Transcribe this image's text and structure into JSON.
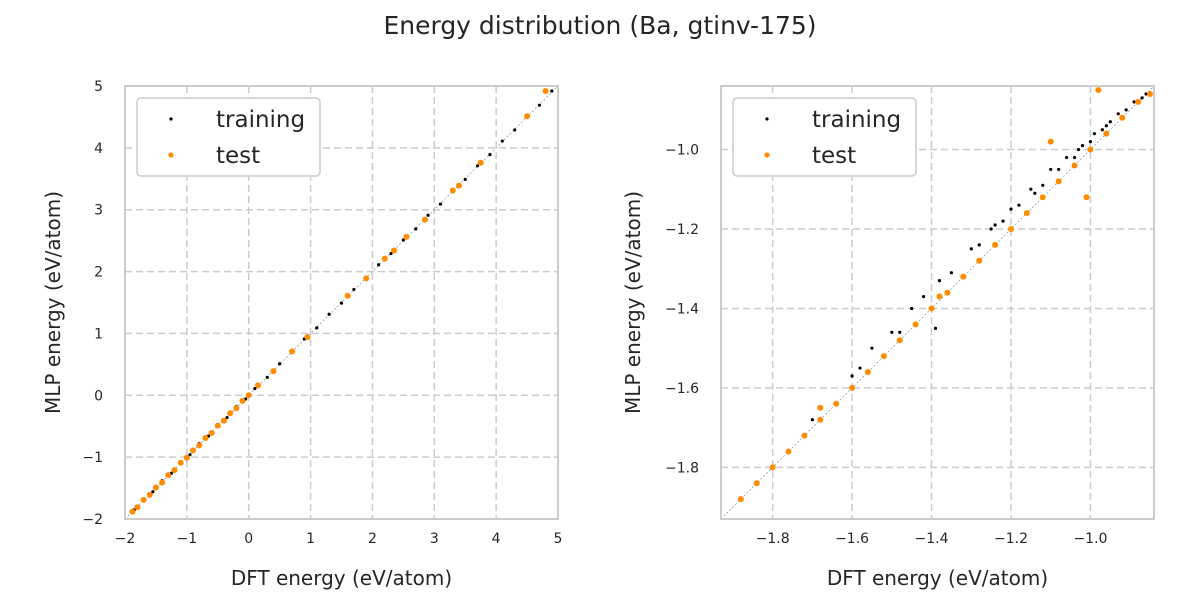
{
  "figure": {
    "title": "Energy distribution (Ba, gtinv-175)",
    "colors": {
      "training": "#000000",
      "test": "#ff8c00",
      "grid": "#cccccc",
      "spine": "#cccccc",
      "diagonal": "#9a9a9a"
    }
  },
  "chart_data": [
    {
      "type": "scatter",
      "title": "",
      "xlabel": "DFT energy (eV/atom)",
      "ylabel": "MLP energy (eV/atom)",
      "xlim": [
        -2,
        5
      ],
      "ylim": [
        -2,
        5
      ],
      "xticks": [
        -2,
        -1,
        0,
        1,
        2,
        3,
        4,
        5
      ],
      "yticks": [
        -2,
        -1,
        0,
        1,
        2,
        3,
        4,
        5
      ],
      "xtick_labels": [
        "−2",
        "−1",
        "0",
        "1",
        "2",
        "3",
        "4",
        "5"
      ],
      "ytick_labels": [
        "−2",
        "−1",
        "0",
        "1",
        "2",
        "3",
        "4",
        "5"
      ],
      "grid": true,
      "legend": {
        "position": "top-left",
        "entries": [
          "training",
          "test"
        ]
      },
      "series": [
        {
          "name": "training",
          "color": "#000000",
          "x": [
            -1.85,
            -1.7,
            -1.55,
            -1.4,
            -1.25,
            -1.1,
            -0.95,
            -0.8,
            -0.65,
            -0.5,
            -0.35,
            -0.2,
            -0.05,
            0.1,
            0.3,
            0.5,
            0.7,
            0.9,
            1.1,
            1.3,
            1.5,
            1.7,
            1.9,
            2.1,
            2.3,
            2.5,
            2.7,
            2.9,
            3.1,
            3.3,
            3.5,
            3.7,
            3.9,
            4.1,
            4.3,
            4.5,
            4.7,
            4.9
          ],
          "y": [
            -1.85,
            -1.69,
            -1.56,
            -1.38,
            -1.26,
            -1.08,
            -0.96,
            -0.78,
            -0.66,
            -0.49,
            -0.36,
            -0.18,
            -0.06,
            0.11,
            0.29,
            0.51,
            0.69,
            0.91,
            1.09,
            1.31,
            1.49,
            1.71,
            1.89,
            2.11,
            2.29,
            2.51,
            2.69,
            2.91,
            3.09,
            3.31,
            3.49,
            3.71,
            3.89,
            4.11,
            4.29,
            4.51,
            4.69,
            4.92
          ]
        },
        {
          "name": "test",
          "color": "#ff8c00",
          "x": [
            -1.88,
            -1.8,
            -1.7,
            -1.6,
            -1.5,
            -1.4,
            -1.3,
            -1.2,
            -1.1,
            -1.0,
            -0.9,
            -0.8,
            -0.7,
            -0.6,
            -0.5,
            -0.4,
            -0.3,
            -0.2,
            -0.1,
            0.0,
            0.15,
            0.4,
            0.7,
            0.95,
            1.6,
            1.9,
            2.2,
            2.35,
            2.55,
            2.85,
            3.3,
            3.4,
            3.75,
            4.5,
            4.8
          ],
          "y": [
            -1.88,
            -1.81,
            -1.69,
            -1.61,
            -1.49,
            -1.41,
            -1.29,
            -1.21,
            -1.09,
            -1.01,
            -0.89,
            -0.81,
            -0.69,
            -0.61,
            -0.49,
            -0.41,
            -0.29,
            -0.21,
            -0.09,
            0.0,
            0.16,
            0.39,
            0.71,
            0.94,
            1.61,
            1.89,
            2.21,
            2.34,
            2.56,
            2.84,
            3.31,
            3.39,
            3.76,
            4.51,
            4.92
          ]
        }
      ]
    },
    {
      "type": "scatter",
      "title": "",
      "xlabel": "DFT energy (eV/atom)",
      "ylabel": "MLP energy (eV/atom)",
      "xlim": [
        -1.93,
        -0.84
      ],
      "ylim": [
        -1.93,
        -0.84
      ],
      "xticks": [
        -1.8,
        -1.6,
        -1.4,
        -1.2,
        -1.0
      ],
      "yticks": [
        -1.8,
        -1.6,
        -1.4,
        -1.2,
        -1.0
      ],
      "xtick_labels": [
        "−1.8",
        "−1.6",
        "−1.4",
        "−1.2",
        "−1.0"
      ],
      "ytick_labels": [
        "−1.8",
        "−1.6",
        "−1.4",
        "−1.2",
        "−1.0"
      ],
      "grid": true,
      "legend": {
        "position": "top-left",
        "entries": [
          "training",
          "test"
        ]
      },
      "series": [
        {
          "name": "training",
          "color": "#000000",
          "x": [
            -1.7,
            -1.6,
            -1.55,
            -1.5,
            -1.45,
            -1.42,
            -1.38,
            -1.35,
            -1.3,
            -1.28,
            -1.25,
            -1.22,
            -1.2,
            -1.18,
            -1.15,
            -1.12,
            -1.1,
            -1.08,
            -1.06,
            -1.04,
            -1.02,
            -1.0,
            -0.99,
            -0.97,
            -0.95,
            -0.93,
            -0.91,
            -0.89,
            -0.87,
            -0.86,
            -1.39,
            -1.58,
            -1.48,
            -1.24,
            -1.14,
            -1.03,
            -0.96
          ],
          "y": [
            -1.68,
            -1.57,
            -1.5,
            -1.46,
            -1.4,
            -1.37,
            -1.33,
            -1.31,
            -1.25,
            -1.24,
            -1.2,
            -1.18,
            -1.15,
            -1.14,
            -1.1,
            -1.09,
            -1.05,
            -1.05,
            -1.02,
            -1.02,
            -0.99,
            -0.98,
            -0.96,
            -0.95,
            -0.93,
            -0.91,
            -0.9,
            -0.88,
            -0.87,
            -0.86,
            -1.45,
            -1.55,
            -1.46,
            -1.19,
            -1.11,
            -1.0,
            -0.94
          ]
        },
        {
          "name": "test",
          "color": "#ff8c00",
          "x": [
            -1.88,
            -1.84,
            -1.8,
            -1.76,
            -1.72,
            -1.68,
            -1.64,
            -1.6,
            -1.56,
            -1.52,
            -1.48,
            -1.44,
            -1.4,
            -1.36,
            -1.32,
            -1.28,
            -1.24,
            -1.2,
            -1.16,
            -1.12,
            -1.08,
            -1.04,
            -1.0,
            -0.96,
            -0.92,
            -0.88,
            -0.85,
            -1.1,
            -0.98,
            -1.01,
            -1.68,
            -1.38
          ],
          "y": [
            -1.88,
            -1.84,
            -1.8,
            -1.76,
            -1.72,
            -1.68,
            -1.64,
            -1.6,
            -1.56,
            -1.52,
            -1.48,
            -1.44,
            -1.4,
            -1.36,
            -1.32,
            -1.28,
            -1.24,
            -1.2,
            -1.16,
            -1.12,
            -1.08,
            -1.04,
            -1.0,
            -0.96,
            -0.92,
            -0.88,
            -0.86,
            -0.98,
            -0.85,
            -1.12,
            -1.65,
            -1.37
          ]
        }
      ]
    }
  ]
}
